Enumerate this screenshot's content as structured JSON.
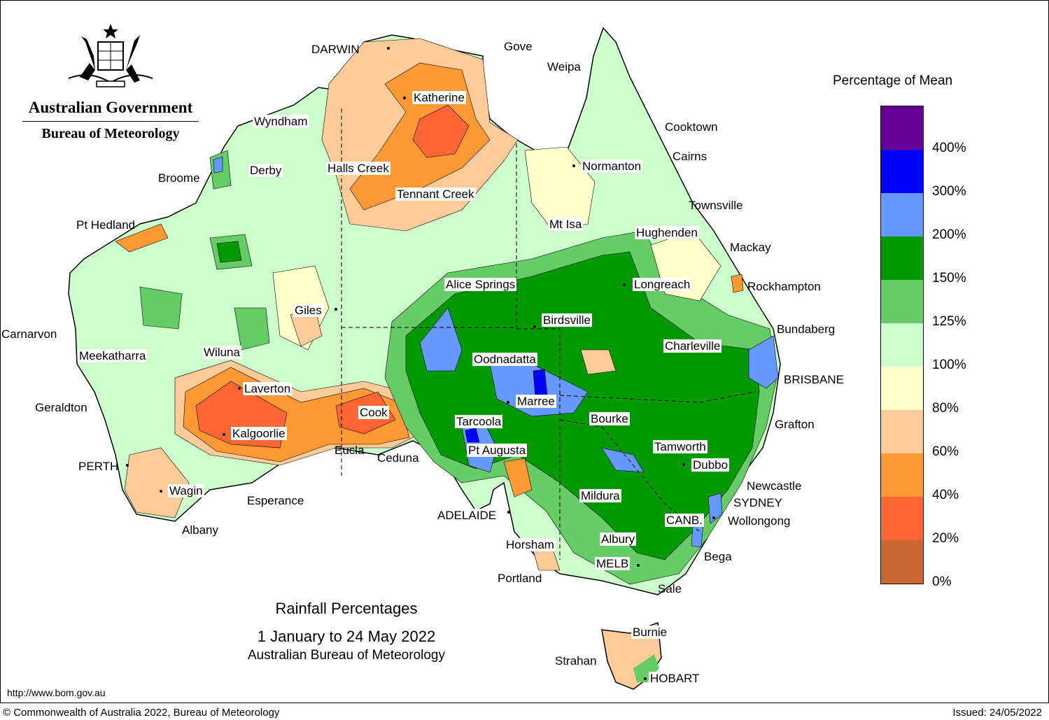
{
  "government": {
    "name": "Australian Government",
    "agency": "Bureau of Meteorology"
  },
  "map": {
    "title": "Rainfall Percentages",
    "period": "1 January to 24 May 2022",
    "source": "Australian Bureau of Meteorology"
  },
  "legend": {
    "title": "Percentage of Mean",
    "colors": [
      "#660099",
      "#0000ff",
      "#6699ff",
      "#009900",
      "#66cc66",
      "#ccffcc",
      "#ffffcc",
      "#ffcc99",
      "#ff9933",
      "#ff6633",
      "#cc6633"
    ],
    "ticks": [
      "400%",
      "300%",
      "200%",
      "150%",
      "125%",
      "100%",
      "80%",
      "60%",
      "40%",
      "20%",
      "0%"
    ]
  },
  "places": {
    "darwin": "DARWIN",
    "gove": "Gove",
    "weipa": "Weipa",
    "katherine": "Katherine",
    "wyndham": "Wyndham",
    "cooktown": "Cooktown",
    "cairns": "Cairns",
    "broome": "Broome",
    "derby": "Derby",
    "halls_creek": "Halls Creek",
    "normanton": "Normanton",
    "tennant_creek": "Tennant Creek",
    "townsville": "Townsville",
    "pt_hedland": "Pt Hedland",
    "mt_isa": "Mt Isa",
    "hughenden": "Hughenden",
    "mackay": "Mackay",
    "alice_springs": "Alice Springs",
    "longreach": "Longreach",
    "rockhampton": "Rockhampton",
    "giles": "Giles",
    "birdsville": "Birdsville",
    "bundaberg": "Bundaberg",
    "carnarvon": "Carnarvon",
    "wiluna": "Wiluna",
    "charleville": "Charleville",
    "meekatharra": "Meekatharra",
    "oodnadatta": "Oodnadatta",
    "brisbane": "BRISBANE",
    "laverton": "Laverton",
    "marree": "Marree",
    "geraldton": "Geraldton",
    "cook": "Cook",
    "bourke": "Bourke",
    "tarcoola": "Tarcoola",
    "grafton": "Grafton",
    "kalgoorlie": "Kalgoorlie",
    "tamworth": "Tamworth",
    "eucla": "Eucla",
    "pt_augusta": "Pt Augusta",
    "ceduna": "Ceduna",
    "dubbo": "Dubbo",
    "perth": "PERTH",
    "newcastle": "Newcastle",
    "wagin": "Wagin",
    "mildura": "Mildura",
    "sydney": "SYDNEY",
    "esperance": "Esperance",
    "adelaide": "ADELAIDE",
    "canberra": "CANB.",
    "wollongong": "Wollongong",
    "albany": "Albany",
    "albury": "Albury",
    "horsham": "Horsham",
    "bega": "Bega",
    "melbourne": "MELB",
    "portland": "Portland",
    "sale": "Sale",
    "burnie": "Burnie",
    "strahan": "Strahan",
    "hobart": "HOBART"
  },
  "footer": {
    "url": "http://www.bom.gov.au",
    "copyright": "© Commonwealth of Australia 2022, Bureau of Meteorology",
    "issued": "Issued: 24/05/2022"
  }
}
